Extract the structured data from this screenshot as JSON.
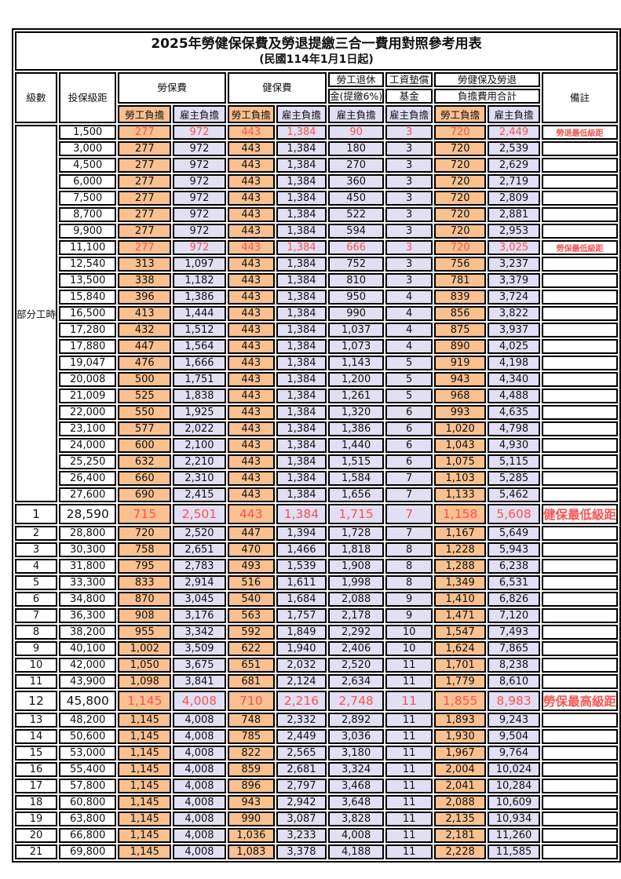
{
  "title": "2025年勞健保保費及勞退提繳三合一費用對照參考用表",
  "subtitle": "(民國114年1月1日起)",
  "colors": {
    "employee_bg": "#FAC090",
    "employer_bg": "#E1DFF1",
    "highlight_text": "#F95353",
    "border": "#000000"
  },
  "header": {
    "level": "級數",
    "salary": "投保級距",
    "labor": "勞保費",
    "health": "健保費",
    "pension_line1": "勞工退休",
    "pension_line2": "金(提繳6%)",
    "wagefund_line1": "工資墊償",
    "wagefund_line2": "基金",
    "total_line1": "勞健保及勞退",
    "total_line2": "負擔費用合計",
    "remark": "備註",
    "employee": "勞工負擔",
    "employer": "雇主負擔"
  },
  "part_time": {
    "label": "部分工時",
    "rowspan": 23
  },
  "rows": [
    {
      "level": "",
      "salary": "1,500",
      "v": [
        "277",
        "972",
        "443",
        "1,384",
        "90",
        "3",
        "720",
        "2,449"
      ],
      "remark": "勞退最低級距",
      "red": true,
      "big": false
    },
    {
      "level": "",
      "salary": "3,000",
      "v": [
        "277",
        "972",
        "443",
        "1,384",
        "180",
        "3",
        "720",
        "2,539"
      ],
      "remark": "",
      "red": false,
      "big": false
    },
    {
      "level": "",
      "salary": "4,500",
      "v": [
        "277",
        "972",
        "443",
        "1,384",
        "270",
        "3",
        "720",
        "2,629"
      ],
      "remark": "",
      "red": false,
      "big": false
    },
    {
      "level": "",
      "salary": "6,000",
      "v": [
        "277",
        "972",
        "443",
        "1,384",
        "360",
        "3",
        "720",
        "2,719"
      ],
      "remark": "",
      "red": false,
      "big": false
    },
    {
      "level": "",
      "salary": "7,500",
      "v": [
        "277",
        "972",
        "443",
        "1,384",
        "450",
        "3",
        "720",
        "2,809"
      ],
      "remark": "",
      "red": false,
      "big": false
    },
    {
      "level": "",
      "salary": "8,700",
      "v": [
        "277",
        "972",
        "443",
        "1,384",
        "522",
        "3",
        "720",
        "2,881"
      ],
      "remark": "",
      "red": false,
      "big": false
    },
    {
      "level": "",
      "salary": "9,900",
      "v": [
        "277",
        "972",
        "443",
        "1,384",
        "594",
        "3",
        "720",
        "2,953"
      ],
      "remark": "",
      "red": false,
      "big": false
    },
    {
      "level": "",
      "salary": "11,100",
      "v": [
        "277",
        "972",
        "443",
        "1,384",
        "666",
        "3",
        "720",
        "3,025"
      ],
      "remark": "勞保最低級距",
      "red": true,
      "big": false
    },
    {
      "level": "",
      "salary": "12,540",
      "v": [
        "313",
        "1,097",
        "443",
        "1,384",
        "752",
        "3",
        "756",
        "3,237"
      ],
      "remark": "",
      "red": false,
      "big": false
    },
    {
      "level": "",
      "salary": "13,500",
      "v": [
        "338",
        "1,182",
        "443",
        "1,384",
        "810",
        "3",
        "781",
        "3,379"
      ],
      "remark": "",
      "red": false,
      "big": false
    },
    {
      "level": "",
      "salary": "15,840",
      "v": [
        "396",
        "1,386",
        "443",
        "1,384",
        "950",
        "4",
        "839",
        "3,724"
      ],
      "remark": "",
      "red": false,
      "big": false
    },
    {
      "level": "",
      "salary": "16,500",
      "v": [
        "413",
        "1,444",
        "443",
        "1,384",
        "990",
        "4",
        "856",
        "3,822"
      ],
      "remark": "",
      "red": false,
      "big": false
    },
    {
      "level": "",
      "salary": "17,280",
      "v": [
        "432",
        "1,512",
        "443",
        "1,384",
        "1,037",
        "4",
        "875",
        "3,937"
      ],
      "remark": "",
      "red": false,
      "big": false
    },
    {
      "level": "",
      "salary": "17,880",
      "v": [
        "447",
        "1,564",
        "443",
        "1,384",
        "1,073",
        "4",
        "890",
        "4,025"
      ],
      "remark": "",
      "red": false,
      "big": false
    },
    {
      "level": "",
      "salary": "19,047",
      "v": [
        "476",
        "1,666",
        "443",
        "1,384",
        "1,143",
        "5",
        "919",
        "4,198"
      ],
      "remark": "",
      "red": false,
      "big": false
    },
    {
      "level": "",
      "salary": "20,008",
      "v": [
        "500",
        "1,751",
        "443",
        "1,384",
        "1,200",
        "5",
        "943",
        "4,340"
      ],
      "remark": "",
      "red": false,
      "big": false
    },
    {
      "level": "",
      "salary": "21,009",
      "v": [
        "525",
        "1,838",
        "443",
        "1,384",
        "1,261",
        "5",
        "968",
        "4,488"
      ],
      "remark": "",
      "red": false,
      "big": false
    },
    {
      "level": "",
      "salary": "22,000",
      "v": [
        "550",
        "1,925",
        "443",
        "1,384",
        "1,320",
        "6",
        "993",
        "4,635"
      ],
      "remark": "",
      "red": false,
      "big": false
    },
    {
      "level": "",
      "salary": "23,100",
      "v": [
        "577",
        "2,022",
        "443",
        "1,384",
        "1,386",
        "6",
        "1,020",
        "4,798"
      ],
      "remark": "",
      "red": false,
      "big": false
    },
    {
      "level": "",
      "salary": "24,000",
      "v": [
        "600",
        "2,100",
        "443",
        "1,384",
        "1,440",
        "6",
        "1,043",
        "4,930"
      ],
      "remark": "",
      "red": false,
      "big": false
    },
    {
      "level": "",
      "salary": "25,250",
      "v": [
        "632",
        "2,210",
        "443",
        "1,384",
        "1,515",
        "6",
        "1,075",
        "5,115"
      ],
      "remark": "",
      "red": false,
      "big": false
    },
    {
      "level": "",
      "salary": "26,400",
      "v": [
        "660",
        "2,310",
        "443",
        "1,384",
        "1,584",
        "7",
        "1,103",
        "5,285"
      ],
      "remark": "",
      "red": false,
      "big": false
    },
    {
      "level": "",
      "salary": "27,600",
      "v": [
        "690",
        "2,415",
        "443",
        "1,384",
        "1,656",
        "7",
        "1,133",
        "5,462"
      ],
      "remark": "",
      "red": false,
      "big": false
    },
    {
      "level": "1",
      "salary": "28,590",
      "v": [
        "715",
        "2,501",
        "443",
        "1,384",
        "1,715",
        "7",
        "1,158",
        "5,608"
      ],
      "remark": "健保最低級距",
      "red": true,
      "big": true
    },
    {
      "level": "2",
      "salary": "28,800",
      "v": [
        "720",
        "2,520",
        "447",
        "1,394",
        "1,728",
        "7",
        "1,167",
        "5,649"
      ],
      "remark": "",
      "red": false,
      "big": false
    },
    {
      "level": "3",
      "salary": "30,300",
      "v": [
        "758",
        "2,651",
        "470",
        "1,466",
        "1,818",
        "8",
        "1,228",
        "5,943"
      ],
      "remark": "",
      "red": false,
      "big": false
    },
    {
      "level": "4",
      "salary": "31,800",
      "v": [
        "795",
        "2,783",
        "493",
        "1,539",
        "1,908",
        "8",
        "1,288",
        "6,238"
      ],
      "remark": "",
      "red": false,
      "big": false
    },
    {
      "level": "5",
      "salary": "33,300",
      "v": [
        "833",
        "2,914",
        "516",
        "1,611",
        "1,998",
        "8",
        "1,349",
        "6,531"
      ],
      "remark": "",
      "red": false,
      "big": false
    },
    {
      "level": "6",
      "salary": "34,800",
      "v": [
        "870",
        "3,045",
        "540",
        "1,684",
        "2,088",
        "9",
        "1,410",
        "6,826"
      ],
      "remark": "",
      "red": false,
      "big": false
    },
    {
      "level": "7",
      "salary": "36,300",
      "v": [
        "908",
        "3,176",
        "563",
        "1,757",
        "2,178",
        "9",
        "1,471",
        "7,120"
      ],
      "remark": "",
      "red": false,
      "big": false
    },
    {
      "level": "8",
      "salary": "38,200",
      "v": [
        "955",
        "3,342",
        "592",
        "1,849",
        "2,292",
        "10",
        "1,547",
        "7,493"
      ],
      "remark": "",
      "red": false,
      "big": false
    },
    {
      "level": "9",
      "salary": "40,100",
      "v": [
        "1,002",
        "3,509",
        "622",
        "1,940",
        "2,406",
        "10",
        "1,624",
        "7,865"
      ],
      "remark": "",
      "red": false,
      "big": false
    },
    {
      "level": "10",
      "salary": "42,000",
      "v": [
        "1,050",
        "3,675",
        "651",
        "2,032",
        "2,520",
        "11",
        "1,701",
        "8,238"
      ],
      "remark": "",
      "red": false,
      "big": false
    },
    {
      "level": "11",
      "salary": "43,900",
      "v": [
        "1,098",
        "3,841",
        "681",
        "2,124",
        "2,634",
        "11",
        "1,779",
        "8,610"
      ],
      "remark": "",
      "red": false,
      "big": false
    },
    {
      "level": "12",
      "salary": "45,800",
      "v": [
        "1,145",
        "4,008",
        "710",
        "2,216",
        "2,748",
        "11",
        "1,855",
        "8,983"
      ],
      "remark": "勞保最高級距",
      "red": true,
      "big": true
    },
    {
      "level": "13",
      "salary": "48,200",
      "v": [
        "1,145",
        "4,008",
        "748",
        "2,332",
        "2,892",
        "11",
        "1,893",
        "9,243"
      ],
      "remark": "",
      "red": false,
      "big": false
    },
    {
      "level": "14",
      "salary": "50,600",
      "v": [
        "1,145",
        "4,008",
        "785",
        "2,449",
        "3,036",
        "11",
        "1,930",
        "9,504"
      ],
      "remark": "",
      "red": false,
      "big": false
    },
    {
      "level": "15",
      "salary": "53,000",
      "v": [
        "1,145",
        "4,008",
        "822",
        "2,565",
        "3,180",
        "11",
        "1,967",
        "9,764"
      ],
      "remark": "",
      "red": false,
      "big": false
    },
    {
      "level": "16",
      "salary": "55,400",
      "v": [
        "1,145",
        "4,008",
        "859",
        "2,681",
        "3,324",
        "11",
        "2,004",
        "10,024"
      ],
      "remark": "",
      "red": false,
      "big": false
    },
    {
      "level": "17",
      "salary": "57,800",
      "v": [
        "1,145",
        "4,008",
        "896",
        "2,797",
        "3,468",
        "11",
        "2,041",
        "10,284"
      ],
      "remark": "",
      "red": false,
      "big": false
    },
    {
      "level": "18",
      "salary": "60,800",
      "v": [
        "1,145",
        "4,008",
        "943",
        "2,942",
        "3,648",
        "11",
        "2,088",
        "10,609"
      ],
      "remark": "",
      "red": false,
      "big": false
    },
    {
      "level": "19",
      "salary": "63,800",
      "v": [
        "1,145",
        "4,008",
        "990",
        "3,087",
        "3,828",
        "11",
        "2,135",
        "10,934"
      ],
      "remark": "",
      "red": false,
      "big": false
    },
    {
      "level": "20",
      "salary": "66,800",
      "v": [
        "1,145",
        "4,008",
        "1,036",
        "3,233",
        "4,008",
        "11",
        "2,181",
        "11,260"
      ],
      "remark": "",
      "red": false,
      "big": false
    },
    {
      "level": "21",
      "salary": "69,800",
      "v": [
        "1,145",
        "4,008",
        "1,083",
        "3,378",
        "4,188",
        "11",
        "2,228",
        "11,585"
      ],
      "remark": "",
      "red": false,
      "big": false
    }
  ]
}
